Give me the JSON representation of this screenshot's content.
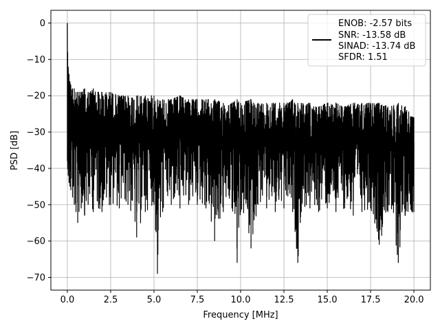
{
  "chart_data": {
    "type": "line",
    "xlabel": "Frequency [MHz]",
    "ylabel": "PSD [dB]",
    "xlim": [
      -0.95,
      20.95
    ],
    "ylim": [
      -73.5,
      3.5
    ],
    "xticks": [
      0.0,
      2.5,
      5.0,
      7.5,
      10.0,
      12.5,
      15.0,
      17.5,
      20.0
    ],
    "xtick_labels": [
      "0.0",
      "2.5",
      "5.0",
      "7.5",
      "10.0",
      "12.5",
      "15.0",
      "17.5",
      "20.0"
    ],
    "yticks": [
      0,
      -10,
      -20,
      -30,
      -40,
      -50,
      -60,
      -70
    ],
    "ytick_labels": [
      "0",
      "−10",
      "−20",
      "−30",
      "−40",
      "−50",
      "−60",
      "−70"
    ],
    "grid": true,
    "legend_position": "top-right",
    "line_color": "#000000",
    "series": [
      {
        "legend_lines": [
          "ENOB: -2.57 bits",
          "SNR: -13.58 dB",
          "SINAD: -13.74 dB",
          "SFDR: 1.51"
        ],
        "x": [
          0.0,
          0.02,
          0.05,
          0.1,
          0.15,
          0.2,
          0.3,
          0.4,
          0.5,
          0.6,
          0.8,
          1.0,
          1.2,
          1.5,
          1.8,
          2.0,
          2.5,
          3.0,
          3.5,
          4.0,
          4.5,
          5.0,
          5.2,
          5.5,
          6.0,
          6.5,
          7.0,
          7.5,
          8.0,
          8.5,
          9.0,
          9.5,
          9.8,
          10.0,
          10.6,
          11.0,
          11.5,
          12.0,
          12.5,
          13.0,
          13.3,
          13.5,
          14.0,
          14.5,
          15.0,
          15.5,
          16.0,
          16.5,
          17.0,
          17.5,
          18.0,
          18.5,
          19.1,
          19.5,
          20.0
        ],
        "y_upper": [
          0.0,
          -8.0,
          -12.0,
          -14.0,
          -16.0,
          -17.0,
          -18.0,
          -18.0,
          -19.0,
          -19.0,
          -19.0,
          -18.0,
          -19.0,
          -18.0,
          -19.0,
          -19.0,
          -19.0,
          -20.0,
          -20.0,
          -20.0,
          -20.0,
          -20.0,
          -21.0,
          -21.0,
          -21.0,
          -20.0,
          -21.0,
          -21.0,
          -21.0,
          -21.0,
          -22.0,
          -22.0,
          -21.0,
          -22.0,
          -21.0,
          -22.0,
          -22.0,
          -22.0,
          -22.0,
          -21.0,
          -22.0,
          -22.0,
          -22.0,
          -23.0,
          -22.0,
          -22.0,
          -23.0,
          -22.0,
          -22.0,
          -22.0,
          -22.0,
          -23.0,
          -22.0,
          -23.0,
          -26.0
        ],
        "y_lower": [
          -38.0,
          -40.0,
          -42.0,
          -44.0,
          -45.0,
          -46.0,
          -48.0,
          -50.0,
          -52.0,
          -55.0,
          -51.0,
          -53.0,
          -50.0,
          -52.0,
          -51.0,
          -52.0,
          -50.0,
          -51.0,
          -50.0,
          -59.0,
          -52.0,
          -50.0,
          -69.0,
          -52.0,
          -50.0,
          -51.0,
          -50.0,
          -50.0,
          -51.0,
          -60.0,
          -52.0,
          -51.0,
          -66.0,
          -52.0,
          -62.0,
          -50.0,
          -51.0,
          -52.0,
          -51.0,
          -52.0,
          -66.0,
          -52.0,
          -51.0,
          -52.0,
          -51.0,
          -52.0,
          -51.0,
          -53.0,
          -52.0,
          -51.0,
          -61.0,
          -52.0,
          -66.0,
          -53.0,
          -52.0
        ]
      }
    ]
  }
}
